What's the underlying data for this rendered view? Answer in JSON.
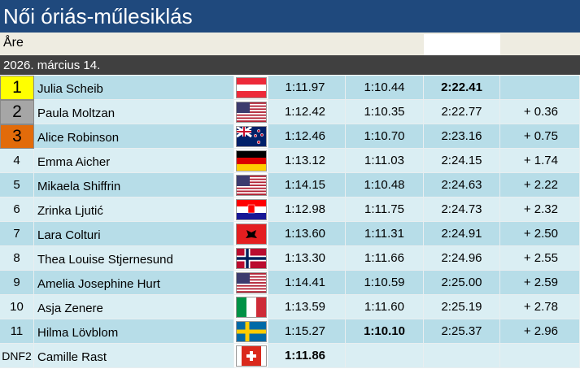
{
  "header": {
    "title": "Női óriás-műlesiklás",
    "venue": "Åre",
    "date": "2026. március 14."
  },
  "table": {
    "rows": [
      {
        "rank": 1,
        "name": "Julia Scheib",
        "run1": "1:11.97",
        "run2": "1:10.44",
        "total": "2:22.41"
      },
      {
        "rank": 2,
        "name": "Paula Moltzan",
        "run1": "1:12.42",
        "run2": "1:10.35",
        "total": "2:22.77",
        "diff": "+ 0.36"
      },
      {
        "rank": 3,
        "name": "Alice Robinson",
        "run1": "1:12.46",
        "run2": "1:10.70",
        "total": "2:23.16",
        "diff": "+ 0.75"
      },
      {
        "rank": 4,
        "name": "Emma Aicher",
        "run1": "1:13.12",
        "run2": "1:11.03",
        "total": "2:24.15",
        "diff": "+ 1.74"
      },
      {
        "rank": 5,
        "name": "Mikaela Shiffrin",
        "run1": "1:14.15",
        "run2": "1:10.48",
        "total": "2:24.63",
        "diff": "+ 2.22"
      },
      {
        "rank": 6,
        "name": "Zrinka Ljutić",
        "run1": "1:12.98",
        "run2": "1:11.75",
        "total": "2:24.73",
        "diff": "+ 2.32"
      },
      {
        "rank": 7,
        "name": "Lara Colturi",
        "run1": "1:13.60",
        "run2": "1:11.31",
        "total": "2:24.91",
        "diff": "+ 2.50"
      },
      {
        "rank": 8,
        "name": "Thea Louise Stjernesund",
        "run1": "1:13.30",
        "run2": "1:11.66",
        "total": "2:24.96",
        "diff": "+ 2.55"
      },
      {
        "rank": 9,
        "name": "Amelia Josephine Hurt",
        "run1": "1:14.41",
        "run2": "1:10.59",
        "total": "2:25.00",
        "diff": "+ 2.59"
      },
      {
        "rank": 10,
        "name": "Asja Zenere",
        "run1": "1:13.59",
        "run2": "1:11.60",
        "total": "2:25.19",
        "diff": "+ 2.78"
      },
      {
        "rank": 11,
        "name": "Hilma Lövblom",
        "run1": "1:15.27",
        "run2": "1:10.10",
        "total": "2:25.37",
        "diff": "+ 2.96"
      },
      {
        "rank": "DNF2",
        "name": "Camille Rast",
        "run1": "1:11.86"
      }
    ]
  }
}
